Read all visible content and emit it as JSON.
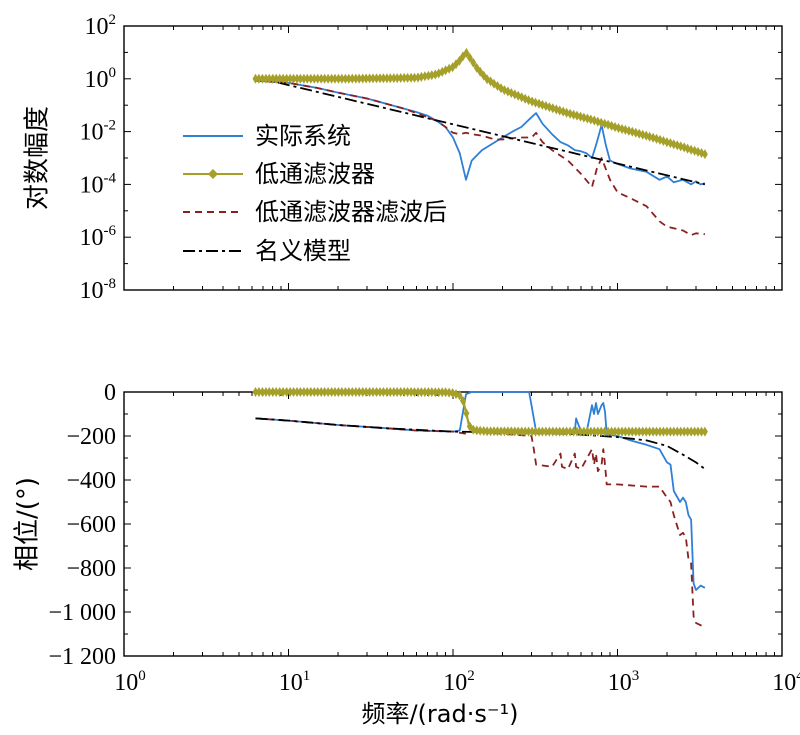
{
  "chart_data": [
    {
      "type": "line",
      "yscale": "log",
      "xscale": "log",
      "ylabel": "对数幅度",
      "xlim": [
        1,
        10000
      ],
      "ylim": [
        1e-08,
        100
      ],
      "ytick_labels": [
        {
          "base": "10",
          "exp": "2"
        },
        {
          "base": "10",
          "exp": "0"
        },
        {
          "base": "10",
          "exp": "-2"
        },
        {
          "base": "10",
          "exp": "-4"
        },
        {
          "base": "10",
          "exp": "-6"
        },
        {
          "base": "10",
          "exp": "-8"
        }
      ],
      "legend": [
        "实际系统",
        "低通滤波器",
        "低通滤波器滤波后",
        "名义模型"
      ],
      "series": [
        {
          "name": "实际系统",
          "color": "#2f7fd6",
          "style": "solid",
          "x": [
            6.3,
            10,
            15,
            20,
            30,
            40,
            50,
            60,
            70,
            80,
            90,
            100,
            110,
            120,
            130,
            150,
            180,
            200,
            230,
            260,
            300,
            320,
            350,
            400,
            450,
            500,
            550,
            600,
            650,
            700,
            750,
            800,
            850,
            900,
            1000,
            1200,
            1500,
            1800,
            2000,
            2200,
            2500,
            2800,
            3000,
            3200,
            3400
          ],
          "y": [
            0.85,
            0.7,
            0.45,
            0.3,
            0.18,
            0.11,
            0.075,
            0.055,
            0.04,
            0.025,
            0.015,
            0.006,
            0.0015,
            0.00015,
            0.0008,
            0.002,
            0.004,
            0.006,
            0.01,
            0.015,
            0.035,
            0.05,
            0.02,
            0.008,
            0.004,
            0.003,
            0.002,
            0.0018,
            0.0015,
            0.001,
            0.004,
            0.018,
            0.003,
            0.0008,
            0.0006,
            0.0004,
            0.0003,
            0.00015,
            0.0002,
            0.00012,
            0.00015,
            0.0001,
            0.00013,
            0.0001,
            0.00011
          ]
        },
        {
          "name": "低通滤波器",
          "color": "#a4a02a",
          "style": "solid-diamond",
          "x": [
            6.3,
            10,
            20,
            40,
            60,
            80,
            100,
            110,
            120,
            130,
            140,
            160,
            200,
            300,
            500,
            700,
            1000,
            1500,
            2000,
            2500,
            3000,
            3400
          ],
          "y": [
            1,
            1,
            1,
            1.05,
            1.1,
            1.5,
            2.8,
            5,
            10,
            5,
            2.5,
            1,
            0.4,
            0.14,
            0.05,
            0.028,
            0.014,
            0.007,
            0.004,
            0.0026,
            0.0018,
            0.0014
          ]
        },
        {
          "name": "低通滤波器滤波后",
          "color": "#8b2020",
          "style": "dashed",
          "x": [
            6.3,
            10,
            15,
            20,
            30,
            40,
            50,
            60,
            70,
            80,
            90,
            100,
            110,
            120,
            130,
            150,
            180,
            200,
            250,
            300,
            320,
            350,
            400,
            500,
            600,
            700,
            750,
            800,
            900,
            1000,
            1200,
            1500,
            1800,
            2000,
            2500,
            2800,
            3000,
            3400
          ],
          "y": [
            0.85,
            0.7,
            0.45,
            0.3,
            0.18,
            0.11,
            0.075,
            0.05,
            0.035,
            0.025,
            0.015,
            0.009,
            0.008,
            0.009,
            0.008,
            0.007,
            0.005,
            0.005,
            0.006,
            0.006,
            0.009,
            0.004,
            0.002,
            0.0008,
            0.00025,
            8e-05,
            0.0004,
            0.001,
            0.00015,
            5e-05,
            3e-05,
            1.5e-05,
            4e-06,
            2.5e-06,
            1.8e-06,
            1.2e-06,
            1.4e-06,
            1.3e-06
          ]
        },
        {
          "name": "名义模型",
          "color": "#000000",
          "style": "dashdot",
          "x": [
            6.3,
            3400
          ],
          "y": [
            1.15,
            0.0001
          ]
        }
      ]
    },
    {
      "type": "line",
      "xscale": "log",
      "ylabel": "相位/(°)",
      "xlabel": "频率/(rad·s⁻¹)",
      "xlim": [
        1,
        10000
      ],
      "ylim": [
        -1200,
        0
      ],
      "xtick_labels": [
        {
          "base": "10",
          "exp": "0"
        },
        {
          "base": "10",
          "exp": "1"
        },
        {
          "base": "10",
          "exp": "2"
        },
        {
          "base": "10",
          "exp": "3"
        },
        {
          "base": "10",
          "exp": "4"
        }
      ],
      "ytick_labels": [
        "0",
        "−200",
        "−400",
        "−600",
        "−800",
        "−1 000",
        "−1 200"
      ],
      "series": [
        {
          "name": "实际系统",
          "color": "#2f7fd6",
          "style": "solid",
          "x": [
            6.3,
            10,
            20,
            40,
            60,
            100,
            110,
            120,
            130,
            200,
            250,
            290,
            300,
            310,
            320,
            400,
            500,
            550,
            560,
            600,
            650,
            700,
            720,
            740,
            760,
            800,
            820,
            840,
            860,
            880,
            900,
            1000,
            1200,
            1500,
            1800,
            2000,
            2100,
            2200,
            2400,
            2500,
            2600,
            2700,
            2800,
            2900,
            3000,
            3200,
            3400
          ],
          "y": [
            -120,
            -130,
            -150,
            -165,
            -175,
            -180,
            -175,
            -10,
            0,
            0,
            0,
            0,
            -60,
            -120,
            -180,
            -180,
            -180,
            -180,
            -120,
            -180,
            -180,
            -60,
            -100,
            -50,
            -100,
            -60,
            -50,
            -90,
            -190,
            -200,
            -195,
            -200,
            -220,
            -240,
            -260,
            -320,
            -330,
            -450,
            -500,
            -480,
            -500,
            -560,
            -580,
            -870,
            -900,
            -880,
            -890
          ]
        },
        {
          "name": "低通滤波器",
          "color": "#a4a02a",
          "style": "solid-diamond",
          "x": [
            6.3,
            20,
            50,
            90,
            100,
            110,
            115,
            120,
            125,
            130,
            140,
            160,
            200,
            300,
            500,
            1000,
            2000,
            3400
          ],
          "y": [
            0,
            0,
            0,
            -1,
            -5,
            -15,
            -40,
            -90,
            -150,
            -170,
            -175,
            -178,
            -179,
            -180,
            -180,
            -180,
            -180,
            -180
          ]
        },
        {
          "name": "低通滤波器滤波后",
          "color": "#8b2020",
          "style": "dashed",
          "x": [
            6.3,
            10,
            20,
            40,
            60,
            100,
            120,
            130,
            200,
            300,
            310,
            320,
            400,
            450,
            460,
            500,
            550,
            560,
            600,
            700,
            720,
            740,
            760,
            800,
            820,
            840,
            860,
            900,
            1000,
            1500,
            1800,
            2000,
            2100,
            2200,
            2400,
            2500,
            2600,
            2700,
            2800,
            2900,
            3000,
            3200,
            3400
          ],
          "y": [
            -120,
            -130,
            -150,
            -165,
            -175,
            -180,
            -190,
            -180,
            -190,
            -200,
            -260,
            -330,
            -340,
            -280,
            -340,
            -350,
            -280,
            -340,
            -350,
            -260,
            -330,
            -280,
            -360,
            -330,
            -260,
            -330,
            -420,
            -420,
            -420,
            -430,
            -430,
            -480,
            -500,
            -560,
            -650,
            -640,
            -660,
            -760,
            -780,
            -1020,
            -1050,
            -1060,
            -1070
          ]
        },
        {
          "name": "名义模型",
          "color": "#000000",
          "style": "dashdot",
          "x": [
            6.3,
            10,
            20,
            40,
            60,
            100,
            150,
            200,
            300,
            500,
            800,
            1000,
            1500,
            2000,
            2500,
            3000,
            3400
          ],
          "y": [
            -120,
            -130,
            -150,
            -165,
            -172,
            -180,
            -182,
            -183,
            -187,
            -190,
            -200,
            -205,
            -220,
            -245,
            -285,
            -320,
            -350
          ]
        }
      ]
    }
  ]
}
